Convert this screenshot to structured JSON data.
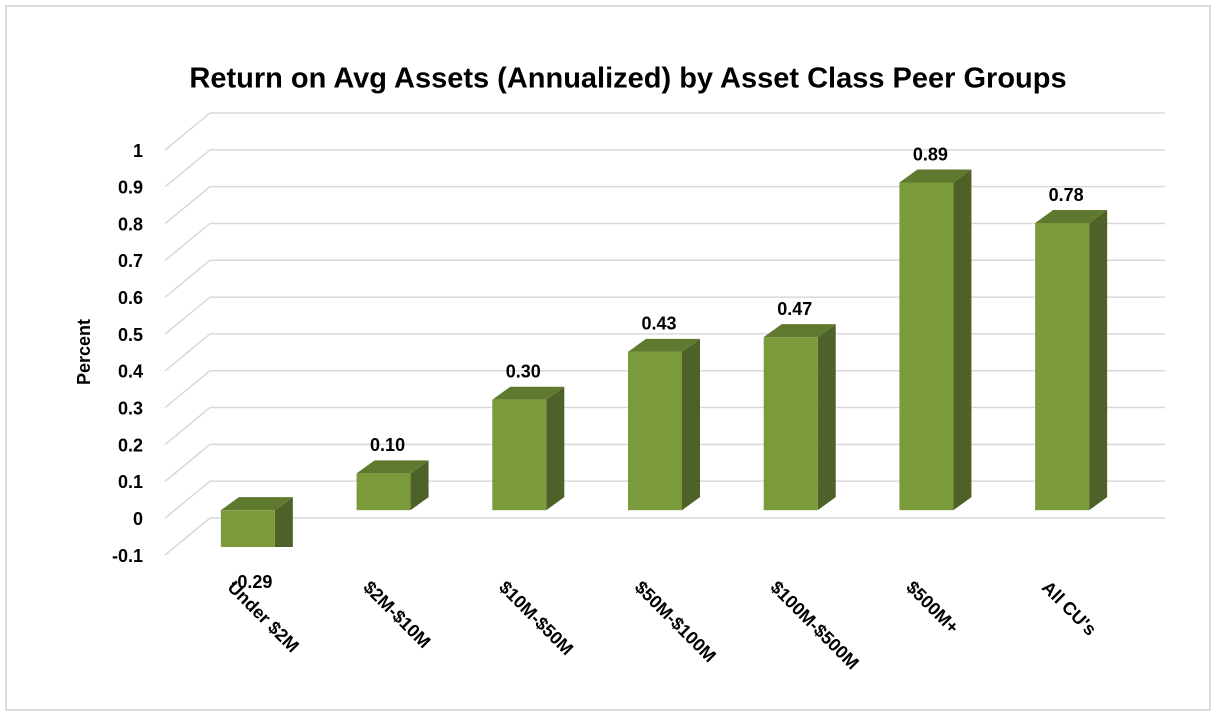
{
  "chart_data": {
    "type": "bar3d",
    "title": "Return on Avg Assets (Annualized)  by Asset Class Peer Groups",
    "y_label": "Percent",
    "categories": [
      "Under $2M",
      "$2M-$10M",
      "$10M-$50M",
      "$50M-$100M",
      "$100M-$500M",
      "$500M+",
      "All CU's"
    ],
    "values": [
      -0.29,
      0.1,
      0.3,
      0.43,
      0.47,
      0.89,
      0.78
    ],
    "value_labels": [
      "-0.29",
      "0.10",
      "0.30",
      "0.43",
      "0.47",
      "0.89",
      "0.78"
    ],
    "color": "#7a9a3c",
    "ylim": [
      -0.1,
      1
    ],
    "yticks": [
      -0.1,
      0,
      0.1,
      0.2,
      0.3,
      0.4,
      0.5,
      0.6,
      0.7,
      0.8,
      0.9,
      1
    ],
    "grid": true
  }
}
